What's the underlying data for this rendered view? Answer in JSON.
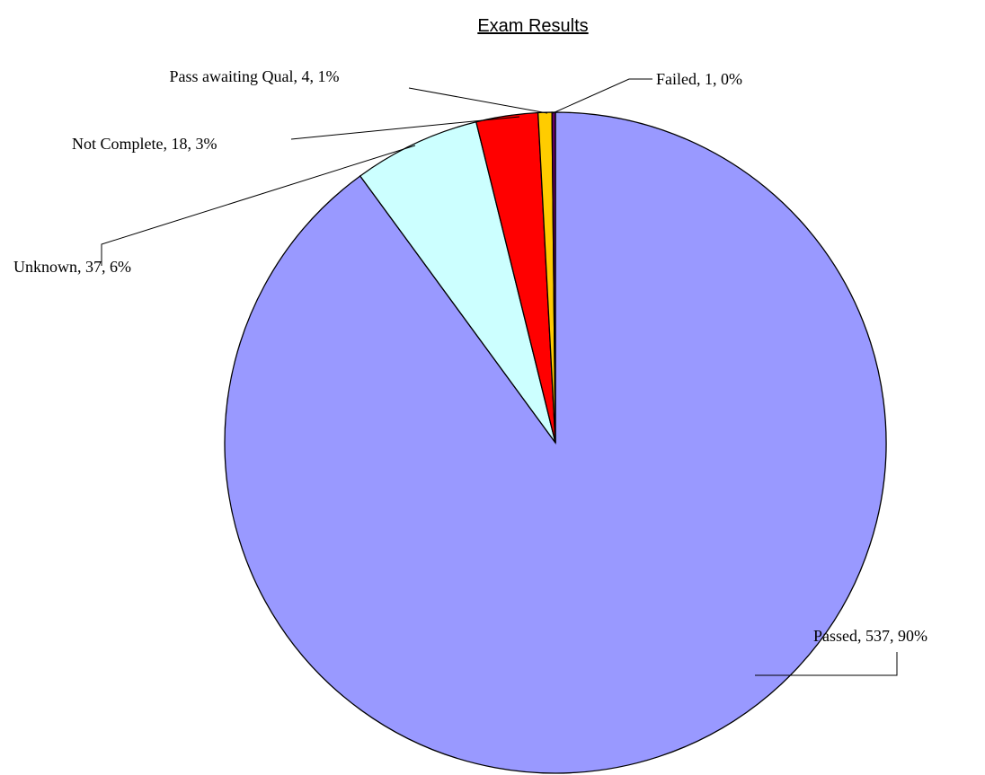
{
  "chart_data": {
    "type": "pie",
    "title": "Exam Results",
    "categories": [
      "Passed",
      "Unknown",
      "Not Complete",
      "Pass awaiting Qual",
      "Failed"
    ],
    "values": [
      537,
      37,
      18,
      4,
      1
    ],
    "value_labels": [
      "Passed, 537, 90%",
      "Unknown, 37, 6%",
      "Not Complete, 18, 3%",
      "Pass awaiting Qual, 4, 1%",
      "Failed, 1, 0%"
    ],
    "colors": [
      "#9999ff",
      "#ccffff",
      "#ff0000",
      "#ffcc00",
      "#660066"
    ]
  }
}
